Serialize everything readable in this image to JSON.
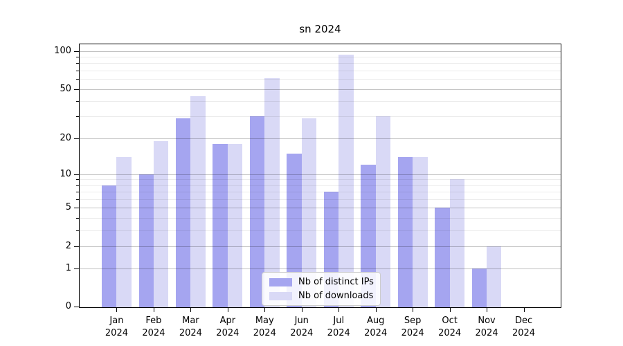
{
  "chart_data": {
    "type": "bar",
    "title": "sn 2024",
    "categories": [
      "Jan",
      "Feb",
      "Mar",
      "Apr",
      "May",
      "Jun",
      "Jul",
      "Aug",
      "Sep",
      "Oct",
      "Nov",
      "Dec"
    ],
    "category_year": "2024",
    "series": [
      {
        "name": "Nb of distinct IPs",
        "color": "#a5a5f0",
        "values": [
          8,
          10,
          29,
          18,
          30,
          15,
          7,
          12,
          14,
          5,
          1,
          0
        ]
      },
      {
        "name": "Nb of downloads",
        "color": "#d9d9f6",
        "values": [
          14,
          19,
          44,
          18,
          61,
          29,
          94,
          30,
          14,
          9,
          2,
          0
        ]
      }
    ],
    "yscale": "log1p",
    "ylim": [
      0,
      113
    ],
    "ytick_values": [
      100,
      50,
      20,
      10,
      5,
      2,
      1,
      0
    ],
    "ytick_labels": [
      "100",
      "50",
      "20",
      "10",
      "5",
      "2",
      "1",
      "0"
    ],
    "yminor_values": [
      3,
      4,
      6,
      7,
      8,
      9,
      30,
      40,
      60,
      70,
      80,
      90
    ],
    "grid": true,
    "legend_position": "lower center",
    "axis_color": "#000000",
    "grid_major_color": "#c2c2c2",
    "grid_minor_color": "#ebebeb"
  }
}
